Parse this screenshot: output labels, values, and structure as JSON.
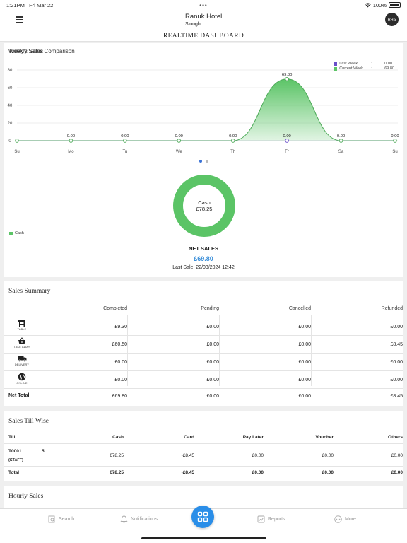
{
  "status_bar": {
    "time": "1:21PM",
    "date": "Fri Mar 22",
    "dots": "•••",
    "battery": "100%"
  },
  "header": {
    "hotel_name": "Ranuk Hotel",
    "location": "Slough",
    "avatar_initials": "RHS"
  },
  "page_title": "REALTIME DASHBOARD",
  "weekly_sales": {
    "title": "Weekly Sales Comparison",
    "legend": [
      {
        "name": "Last Week",
        "sep": ":",
        "value": "0.00",
        "color": "#6a4fc9"
      },
      {
        "name": "Current Week",
        "sep": ":",
        "value": "69.80",
        "color": "#5bc466"
      }
    ]
  },
  "chart_data": {
    "type": "area",
    "title": "Weekly Sales Comparison",
    "categories": [
      "Su",
      "Mo",
      "Tu",
      "We",
      "Th",
      "Fr",
      "Sa",
      "Su"
    ],
    "ylim": [
      0,
      80
    ],
    "yticks": [
      "0",
      "20",
      "40",
      "60",
      "80"
    ],
    "grid": true,
    "legend_position": "top-right",
    "series": [
      {
        "name": "Current Week",
        "values": [
          0,
          0,
          0,
          0,
          0,
          69.8,
          0,
          0
        ],
        "color": "#5bc466"
      },
      {
        "name": "Last Week",
        "values": [
          0,
          0,
          0,
          0,
          0,
          0,
          0,
          0
        ],
        "color": "#6a4fc9"
      }
    ],
    "point_labels": [
      "",
      "0.00",
      "0.00",
      "0.00",
      "0.00",
      "69.80",
      "0.00",
      "0.00"
    ],
    "extra_labels": [
      {
        "x": "Fr",
        "text": "0.00"
      }
    ]
  },
  "todays_sales": {
    "title": "Today's Sales",
    "donut_label": "Cash",
    "donut_value": "£78.25",
    "legend_label": "Cash",
    "net_sales_label": "NET SALES",
    "net_sales_value": "£69.80",
    "last_sale": "Last Sale: 22/03/2024 12:42"
  },
  "sales_summary": {
    "title": "Sales Summary",
    "columns": [
      "Completed",
      "Pending",
      "Cancelled",
      "Refunded"
    ],
    "rows": [
      {
        "icon": "table-icon",
        "label": "TABLE",
        "values": [
          "£9.30",
          "£0.00",
          "£0.00",
          "£0.00"
        ]
      },
      {
        "icon": "takeaway-basket-icon",
        "label": "TAKE AWAY",
        "values": [
          "£60.50",
          "£0.00",
          "£0.00",
          "£8.45"
        ]
      },
      {
        "icon": "delivery-truck-icon",
        "label": "DELIVERY",
        "values": [
          "£0.00",
          "£0.00",
          "£0.00",
          "£0.00"
        ]
      },
      {
        "icon": "globe-icon",
        "label": "ONLINE",
        "values": [
          "£0.00",
          "£0.00",
          "£0.00",
          "£0.00"
        ]
      }
    ],
    "total": {
      "label": "Net Total",
      "values": [
        "£69.80",
        "£0.00",
        "£0.00",
        "£8.45"
      ]
    }
  },
  "sales_till_wise": {
    "title": "Sales Till Wise",
    "columns": [
      "Till",
      "Cash",
      "Card",
      "Pay Later",
      "Voucher",
      "Others"
    ],
    "rows": [
      {
        "till": "T0001",
        "count": "5",
        "staff": "(STAFF)",
        "values": [
          "£78.25",
          "-£8.45",
          "£0.00",
          "£0.00",
          "£0.00"
        ]
      }
    ],
    "total": {
      "label": "Total",
      "values": [
        "£78.25",
        "-£8.45",
        "£0.00",
        "£0.00",
        "£0.00"
      ]
    }
  },
  "hourly_sales": {
    "title": "Hourly Sales"
  },
  "tabbar": {
    "search": "Search",
    "notifications": "Notifications",
    "reports": "Reports",
    "more": "More"
  },
  "colors": {
    "accent": "#2a8ee8",
    "green": "#5bc466",
    "net_sales": "#3b8fd9"
  }
}
